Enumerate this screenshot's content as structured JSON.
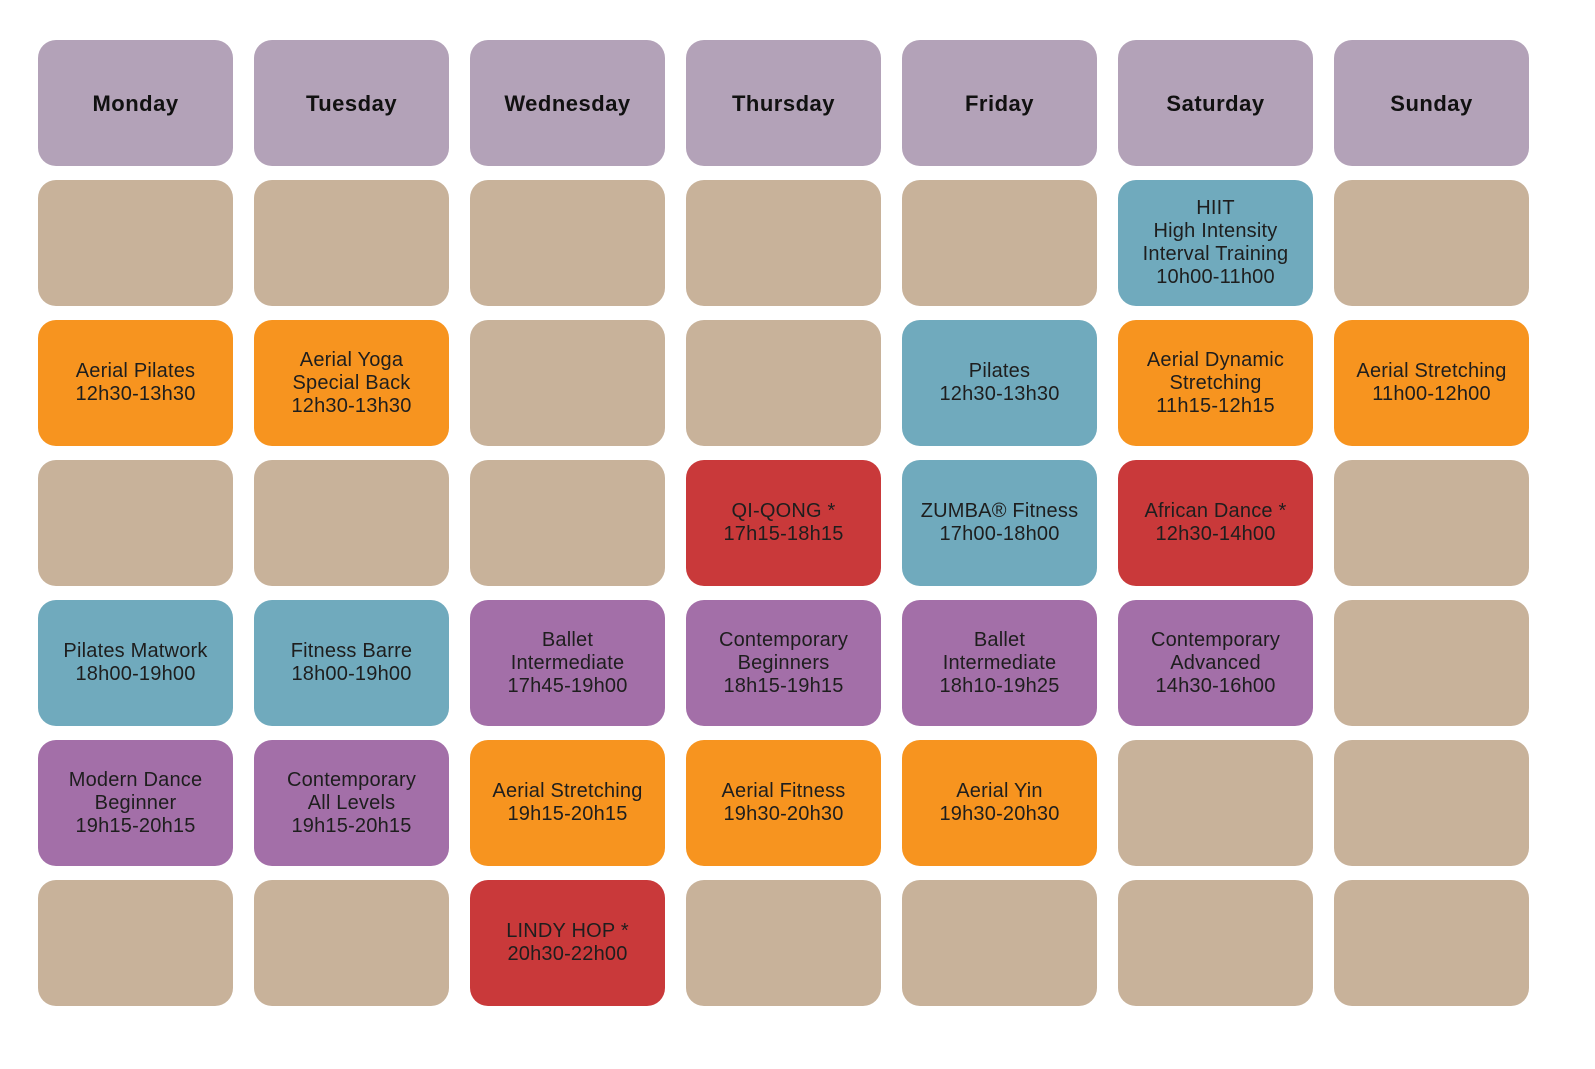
{
  "colors": {
    "header": "#b3a2b8",
    "empty": "#c8b29a",
    "orange": "#f7941f",
    "blue": "#70aabd",
    "red": "#c9393a",
    "purple": "#a36fa8"
  },
  "days": [
    "Monday",
    "Tuesday",
    "Wednesday",
    "Thursday",
    "Friday",
    "Saturday",
    "Sunday"
  ],
  "rows": [
    [
      {
        "color": "empty",
        "lines": []
      },
      {
        "color": "empty",
        "lines": []
      },
      {
        "color": "empty",
        "lines": []
      },
      {
        "color": "empty",
        "lines": []
      },
      {
        "color": "empty",
        "lines": []
      },
      {
        "color": "blue",
        "lines": [
          "HIIT",
          "High Intensity",
          "Interval Training",
          "10h00-11h00"
        ]
      },
      {
        "color": "empty",
        "lines": []
      }
    ],
    [
      {
        "color": "orange",
        "lines": [
          "Aerial Pilates",
          "12h30-13h30"
        ]
      },
      {
        "color": "orange",
        "lines": [
          "Aerial Yoga",
          "Special Back",
          "12h30-13h30"
        ]
      },
      {
        "color": "empty",
        "lines": []
      },
      {
        "color": "empty",
        "lines": []
      },
      {
        "color": "blue",
        "lines": [
          "Pilates",
          "12h30-13h30"
        ]
      },
      {
        "color": "orange",
        "lines": [
          "Aerial Dynamic",
          "Stretching",
          "11h15-12h15"
        ]
      },
      {
        "color": "orange",
        "lines": [
          "Aerial Stretching",
          "11h00-12h00"
        ]
      }
    ],
    [
      {
        "color": "empty",
        "lines": []
      },
      {
        "color": "empty",
        "lines": []
      },
      {
        "color": "empty",
        "lines": []
      },
      {
        "color": "red",
        "lines": [
          "QI-QONG *",
          "17h15-18h15"
        ]
      },
      {
        "color": "blue",
        "lines": [
          "ZUMBA® Fitness",
          "17h00-18h00"
        ]
      },
      {
        "color": "red",
        "lines": [
          "African Dance *",
          "12h30-14h00"
        ]
      },
      {
        "color": "empty",
        "lines": []
      }
    ],
    [
      {
        "color": "blue",
        "lines": [
          "Pilates Matwork",
          "18h00-19h00"
        ]
      },
      {
        "color": "blue",
        "lines": [
          "Fitness Barre",
          "18h00-19h00"
        ]
      },
      {
        "color": "purple",
        "lines": [
          "Ballet",
          "Intermediate",
          "17h45-19h00"
        ]
      },
      {
        "color": "purple",
        "lines": [
          "Contemporary",
          "Beginners",
          "18h15-19h15"
        ]
      },
      {
        "color": "purple",
        "lines": [
          "Ballet",
          "Intermediate",
          "18h10-19h25"
        ]
      },
      {
        "color": "purple",
        "lines": [
          "Contemporary",
          "Advanced",
          "14h30-16h00"
        ]
      },
      {
        "color": "empty",
        "lines": []
      }
    ],
    [
      {
        "color": "purple",
        "lines": [
          "Modern Dance",
          "Beginner",
          "19h15-20h15"
        ]
      },
      {
        "color": "purple",
        "lines": [
          "Contemporary",
          "All Levels",
          "19h15-20h15"
        ]
      },
      {
        "color": "orange",
        "lines": [
          "Aerial Stretching",
          "19h15-20h15"
        ]
      },
      {
        "color": "orange",
        "lines": [
          "Aerial Fitness",
          "19h30-20h30"
        ]
      },
      {
        "color": "orange",
        "lines": [
          "Aerial Yin",
          "19h30-20h30"
        ]
      },
      {
        "color": "empty",
        "lines": []
      },
      {
        "color": "empty",
        "lines": []
      }
    ],
    [
      {
        "color": "empty",
        "lines": []
      },
      {
        "color": "empty",
        "lines": []
      },
      {
        "color": "red",
        "lines": [
          "LINDY HOP *",
          "20h30-22h00"
        ]
      },
      {
        "color": "empty",
        "lines": []
      },
      {
        "color": "empty",
        "lines": []
      },
      {
        "color": "empty",
        "lines": []
      },
      {
        "color": "empty",
        "lines": []
      }
    ]
  ]
}
